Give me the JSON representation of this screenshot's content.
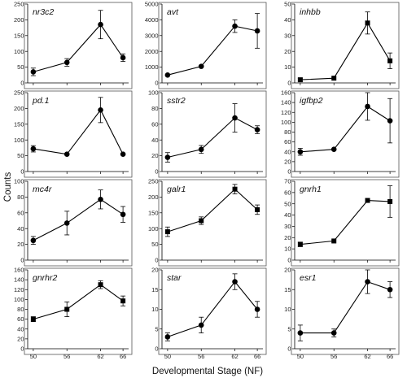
{
  "chart_data": [
    {
      "type": "line",
      "gene": "nr3c2",
      "x": [
        50,
        56,
        62,
        66
      ],
      "values": [
        35,
        65,
        185,
        80
      ],
      "err": [
        12,
        12,
        45,
        12
      ],
      "ylim": [
        0,
        250
      ],
      "yticks": [
        0,
        50,
        100,
        150,
        200,
        250
      ],
      "marker": "circle"
    },
    {
      "type": "line",
      "gene": "avt",
      "x": [
        50,
        56,
        62,
        66
      ],
      "values": [
        500,
        1050,
        3600,
        3300
      ],
      "err": [
        0,
        0,
        400,
        1100
      ],
      "ylim": [
        0,
        5000
      ],
      "yticks": [
        0,
        1000,
        2000,
        3000,
        4000,
        5000
      ],
      "marker": "circle"
    },
    {
      "type": "line",
      "gene": "inhbb",
      "x": [
        50,
        56,
        62,
        66
      ],
      "values": [
        2,
        3,
        38,
        14
      ],
      "err": [
        1,
        0,
        7,
        5
      ],
      "ylim": [
        0,
        50
      ],
      "yticks": [
        0,
        10,
        20,
        30,
        40,
        50
      ],
      "marker": "square"
    },
    {
      "type": "line",
      "gene": "pd.1",
      "x": [
        50,
        56,
        62,
        66
      ],
      "values": [
        72,
        55,
        195,
        55
      ],
      "err": [
        10,
        0,
        40,
        0
      ],
      "ylim": [
        0,
        250
      ],
      "yticks": [
        0,
        50,
        100,
        150,
        200,
        250
      ],
      "marker": "circle"
    },
    {
      "type": "line",
      "gene": "sstr2",
      "x": [
        50,
        56,
        62,
        66
      ],
      "values": [
        18,
        28,
        68,
        53
      ],
      "err": [
        6,
        5,
        18,
        5
      ],
      "ylim": [
        0,
        100
      ],
      "yticks": [
        0,
        20,
        40,
        60,
        80,
        100
      ],
      "marker": "circle"
    },
    {
      "type": "line",
      "gene": "igfbp2",
      "x": [
        50,
        56,
        62,
        66
      ],
      "values": [
        40,
        45,
        132,
        103
      ],
      "err": [
        7,
        0,
        28,
        45
      ],
      "ylim": [
        0,
        160
      ],
      "yticks": [
        0,
        20,
        40,
        60,
        80,
        100,
        120,
        140,
        160
      ],
      "marker": "circle"
    },
    {
      "type": "line",
      "gene": "mc4r",
      "x": [
        50,
        56,
        62,
        66
      ],
      "values": [
        25,
        47,
        77,
        58
      ],
      "err": [
        5,
        15,
        12,
        10
      ],
      "ylim": [
        0,
        100
      ],
      "yticks": [
        0,
        20,
        40,
        60,
        80,
        100
      ],
      "marker": "circle"
    },
    {
      "type": "line",
      "gene": "galr1",
      "x": [
        50,
        56,
        62,
        66
      ],
      "values": [
        90,
        125,
        225,
        160
      ],
      "err": [
        15,
        12,
        15,
        15
      ],
      "ylim": [
        0,
        250
      ],
      "yticks": [
        0,
        50,
        100,
        150,
        200,
        250
      ],
      "marker": "square"
    },
    {
      "type": "line",
      "gene": "gnrh1",
      "x": [
        50,
        56,
        62,
        66
      ],
      "values": [
        14,
        17,
        53,
        52
      ],
      "err": [
        2,
        0,
        0,
        14
      ],
      "ylim": [
        0,
        70
      ],
      "yticks": [
        0,
        10,
        20,
        30,
        40,
        50,
        60,
        70
      ],
      "marker": "square"
    },
    {
      "type": "line",
      "gene": "gnrhr2",
      "x": [
        50,
        56,
        62,
        66
      ],
      "values": [
        60,
        80,
        130,
        97
      ],
      "err": [
        5,
        15,
        8,
        10
      ],
      "ylim": [
        0,
        160
      ],
      "yticks": [
        0,
        20,
        40,
        60,
        80,
        100,
        120,
        140,
        160
      ],
      "marker": "square"
    },
    {
      "type": "line",
      "gene": "star",
      "x": [
        50,
        56,
        62,
        66
      ],
      "values": [
        3,
        6,
        17,
        10
      ],
      "err": [
        1,
        2,
        2,
        2
      ],
      "ylim": [
        0,
        20
      ],
      "yticks": [
        0,
        5,
        10,
        15,
        20
      ],
      "marker": "circle"
    },
    {
      "type": "line",
      "gene": "esr1",
      "x": [
        50,
        56,
        62,
        66
      ],
      "values": [
        4,
        4,
        17,
        15
      ],
      "err": [
        2,
        1,
        3,
        2
      ],
      "ylim": [
        0,
        20
      ],
      "yticks": [
        0,
        5,
        10,
        15,
        20
      ],
      "marker": "circle"
    }
  ],
  "xticks": [
    50,
    56,
    62,
    66
  ],
  "xlabel": "Developmental Stage (NF)",
  "ylabel": "Counts",
  "grid": false
}
